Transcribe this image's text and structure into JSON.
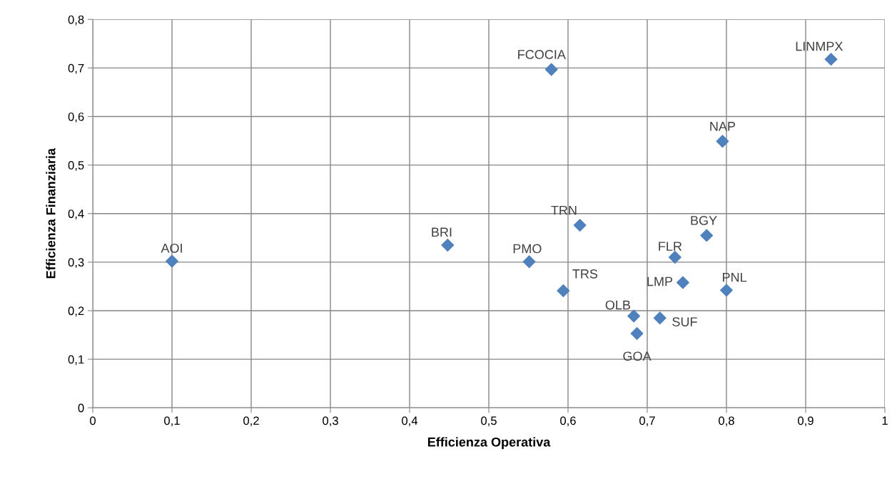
{
  "chart_data": {
    "type": "scatter",
    "xlabel": "Efficienza Operativa",
    "ylabel": "Efficienza Finanziaria",
    "marker": "diamond",
    "grid": true,
    "series": [
      {
        "color": "#4f81bd",
        "x": [
          0.1,
          0.448,
          0.551,
          0.594,
          0.615,
          0.579,
          0.683,
          0.687,
          0.716,
          0.735,
          0.745,
          0.775,
          0.8,
          0.795,
          0.932
        ],
        "values": [
          0.302,
          0.335,
          0.301,
          0.241,
          0.376,
          0.697,
          0.189,
          0.153,
          0.185,
          0.31,
          0.258,
          0.355,
          0.242,
          0.549,
          0.718
        ]
      }
    ],
    "annotations": [
      {
        "text": "AOI",
        "x": 0.1,
        "y": 0.302
      },
      {
        "text": "BRI",
        "x": 0.448,
        "y": 0.335
      },
      {
        "text": "PMO",
        "x": 0.551,
        "y": 0.301
      },
      {
        "text": "TRS",
        "x": 0.594,
        "y": 0.241
      },
      {
        "text": "TRN",
        "x": 0.615,
        "y": 0.376
      },
      {
        "text": "FCOCIA",
        "x": 0.579,
        "y": 0.697
      },
      {
        "text": "OLB",
        "x": 0.683,
        "y": 0.189
      },
      {
        "text": "GOA",
        "x": 0.687,
        "y": 0.153
      },
      {
        "text": "SUF",
        "x": 0.716,
        "y": 0.185
      },
      {
        "text": "FLR",
        "x": 0.735,
        "y": 0.31
      },
      {
        "text": "LMP",
        "x": 0.745,
        "y": 0.258
      },
      {
        "text": "BGY",
        "x": 0.775,
        "y": 0.355
      },
      {
        "text": "PNL",
        "x": 0.8,
        "y": 0.242
      },
      {
        "text": "NAP",
        "x": 0.795,
        "y": 0.549
      },
      {
        "text": "LINMPX",
        "x": 0.932,
        "y": 0.718
      }
    ],
    "xlim": [
      0,
      1
    ],
    "xticks": [
      0,
      {
        "value": 0.1,
        "label": "0,1"
      },
      {
        "value": 0.2,
        "label": "0,2"
      },
      {
        "value": 0.3,
        "label": "0,3"
      },
      {
        "value": 0.4,
        "label": "0,4"
      },
      {
        "value": 0.5,
        "label": "0,5"
      },
      {
        "value": 0.6,
        "label": "0,6"
      },
      {
        "value": 0.7,
        "label": "0,7"
      },
      {
        "value": 0.8,
        "label": "0,8"
      },
      {
        "value": 0.9,
        "label": "0,9"
      },
      1
    ],
    "ylim": [
      0,
      0.8
    ],
    "yticks": [
      0,
      {
        "value": 0.1,
        "label": "0,1"
      },
      {
        "value": 0.2,
        "label": "0,2"
      },
      {
        "value": 0.3,
        "label": "0,3"
      },
      {
        "value": 0.4,
        "label": "0,4"
      },
      {
        "value": 0.5,
        "label": "0,5"
      },
      {
        "value": 0.6,
        "label": "0,6"
      },
      {
        "value": 0.7,
        "label": "0,7"
      },
      {
        "value": 0.8,
        "label": "0,8"
      }
    ]
  }
}
